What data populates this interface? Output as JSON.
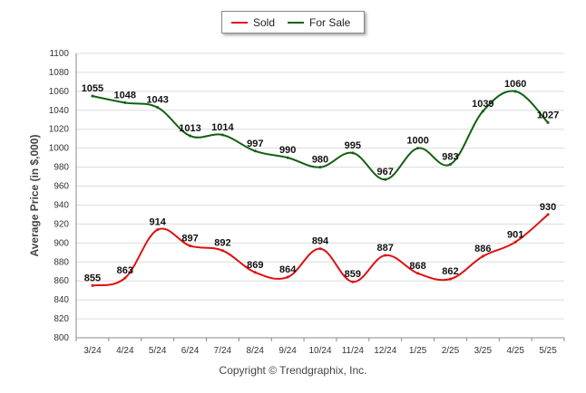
{
  "chart_data": {
    "type": "line",
    "categories": [
      "3/24",
      "4/24",
      "5/24",
      "6/24",
      "7/24",
      "8/24",
      "9/24",
      "10/24",
      "11/24",
      "12/24",
      "1/25",
      "2/25",
      "3/25",
      "4/25",
      "5/25"
    ],
    "series": [
      {
        "name": "Sold",
        "color": "#e01010",
        "values": [
          855,
          863,
          914,
          897,
          892,
          869,
          864,
          894,
          859,
          887,
          868,
          862,
          886,
          901,
          930
        ]
      },
      {
        "name": "For Sale",
        "color": "#106010",
        "values": [
          1055,
          1048,
          1043,
          1013,
          1014,
          997,
          990,
          980,
          995,
          967,
          1000,
          983,
          1039,
          1060,
          1027
        ]
      }
    ],
    "ylabel": "Average Price (in $,000)",
    "xlabel": "",
    "ylim": [
      800,
      1100
    ],
    "yticks": [
      800,
      820,
      840,
      860,
      880,
      900,
      920,
      940,
      960,
      980,
      1000,
      1020,
      1040,
      1060,
      1080,
      1100
    ],
    "grid": true,
    "legend": "top-center"
  },
  "footer": "Copyright © Trendgraphix, Inc."
}
